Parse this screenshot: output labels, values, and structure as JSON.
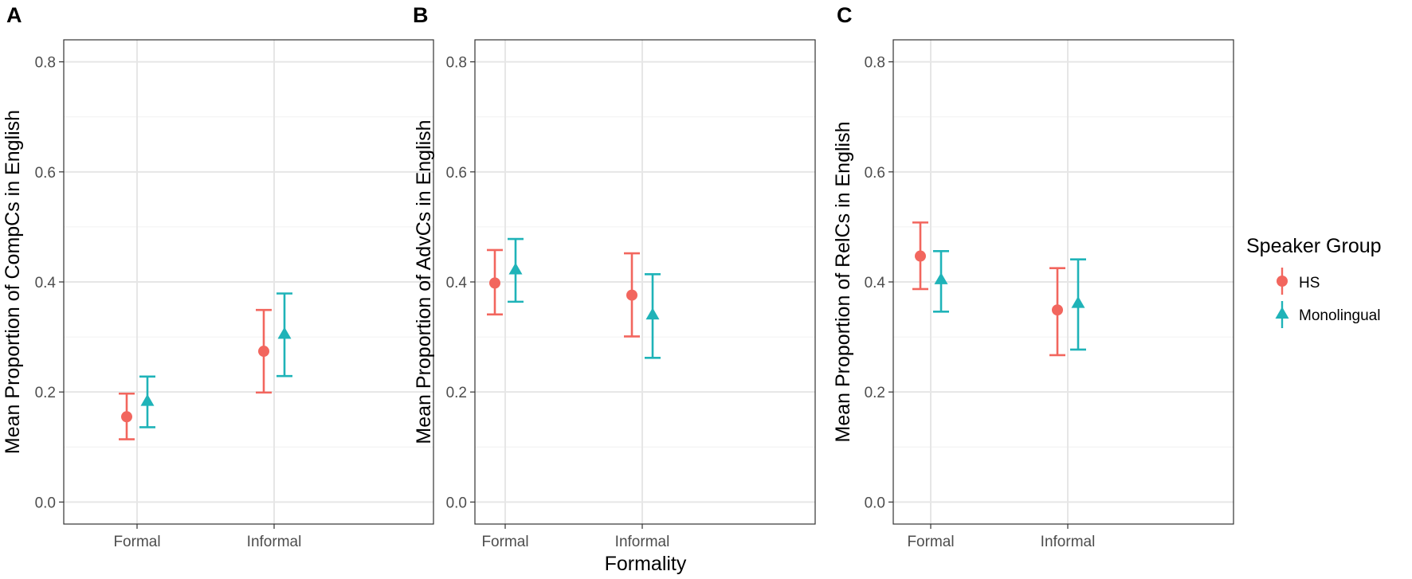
{
  "chart_data": [
    {
      "type": "scatter",
      "panel": "A",
      "categories": [
        "Formal",
        "Informal"
      ],
      "ylabel": "Mean Proportion of CompCs in English",
      "xlabel": "",
      "ylim": [
        -0.04,
        0.84
      ],
      "yticks": [
        0.0,
        0.2,
        0.4,
        0.6,
        0.8
      ],
      "ytick_labels": [
        "0.0",
        "0.2",
        "0.4",
        "0.6",
        "0.8"
      ],
      "series": [
        {
          "name": "HS",
          "values": [
            0.155,
            0.274
          ],
          "lower": [
            0.114,
            0.199
          ],
          "upper": [
            0.197,
            0.349
          ]
        },
        {
          "name": "Monolingual",
          "values": [
            0.182,
            0.304
          ],
          "lower": [
            0.136,
            0.229
          ],
          "upper": [
            0.228,
            0.379
          ]
        }
      ]
    },
    {
      "type": "scatter",
      "panel": "B",
      "categories": [
        "Formal",
        "Informal"
      ],
      "ylabel": "Mean Proportion of AdvCs in English",
      "xlabel": "Formality",
      "ylim": [
        -0.04,
        0.84
      ],
      "yticks": [
        0.0,
        0.2,
        0.4,
        0.6,
        0.8
      ],
      "ytick_labels": [
        "0.0",
        "0.2",
        "0.4",
        "0.6",
        "0.8"
      ],
      "series": [
        {
          "name": "HS",
          "values": [
            0.398,
            0.376
          ],
          "lower": [
            0.341,
            0.301
          ],
          "upper": [
            0.458,
            0.452
          ]
        },
        {
          "name": "Monolingual",
          "values": [
            0.421,
            0.339
          ],
          "lower": [
            0.364,
            0.262
          ],
          "upper": [
            0.478,
            0.414
          ]
        }
      ]
    },
    {
      "type": "scatter",
      "panel": "C",
      "categories": [
        "Formal",
        "Informal"
      ],
      "ylabel": "Mean Proportion of RelCs in English",
      "xlabel": "",
      "ylim": [
        -0.04,
        0.84
      ],
      "yticks": [
        0.0,
        0.2,
        0.4,
        0.6,
        0.8
      ],
      "ytick_labels": [
        "0.0",
        "0.2",
        "0.4",
        "0.6",
        "0.8"
      ],
      "series": [
        {
          "name": "HS",
          "values": [
            0.447,
            0.349
          ],
          "lower": [
            0.387,
            0.267
          ],
          "upper": [
            0.508,
            0.425
          ]
        },
        {
          "name": "Monolingual",
          "values": [
            0.403,
            0.36
          ],
          "lower": [
            0.346,
            0.277
          ],
          "upper": [
            0.456,
            0.441
          ]
        }
      ]
    }
  ],
  "legend": {
    "title": "Speaker Group",
    "placement": "right",
    "items": [
      {
        "label": "HS",
        "shape": "circle",
        "color": "#F2665E"
      },
      {
        "label": "Monolingual",
        "shape": "triangle",
        "color": "#1FB3B8"
      }
    ]
  },
  "colors": {
    "HS": "#F2665E",
    "Monolingual": "#1FB3B8",
    "grid": "#e6e6e6",
    "axis_text": "#4d4d4d"
  }
}
